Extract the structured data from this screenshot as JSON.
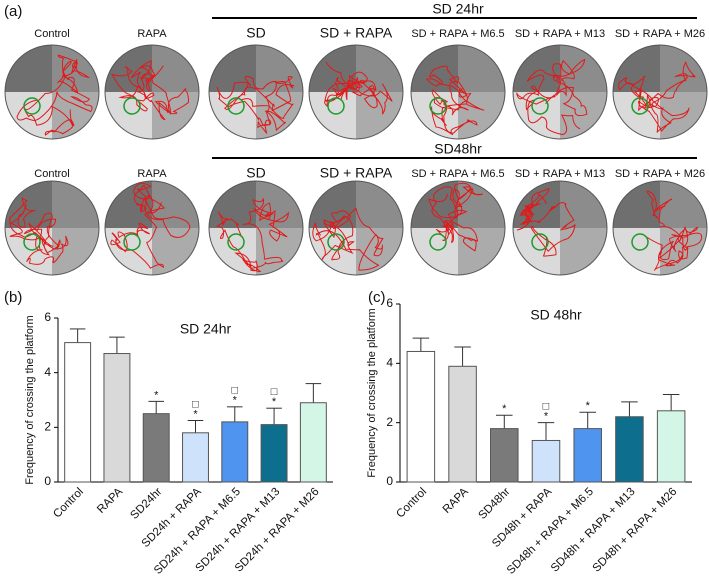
{
  "panel_a": {
    "label": "(a)",
    "rows": [
      {
        "group": "SD 24hr",
        "labels": [
          "Control",
          "RAPA",
          "SD",
          "SD + RAPA",
          "SD + RAPA + M6.5",
          "SD + RAPA + M13",
          "SD + RAPA + M26"
        ]
      },
      {
        "group": "SD48hr",
        "labels": [
          "Control",
          "RAPA",
          "SD",
          "SD + RAPA",
          "SD + RAPA + M6.5",
          "SD + RAPA + M13",
          "SD + RAPA + M26"
        ]
      }
    ]
  },
  "chart_data": [
    {
      "type": "bar",
      "panel": "(b)",
      "title": "SD 24hr",
      "ylabel": "Frequency of crossing the platform",
      "categories": [
        "Control",
        "RAPA",
        "SD24hr",
        "SD24h + RAPA",
        "SD24h + RAPA + M6.5",
        "SD24h + RAPA + M13",
        "SD24h + RAPA + M26"
      ],
      "values": [
        5.1,
        4.7,
        2.5,
        1.8,
        2.2,
        2.1,
        2.9
      ],
      "errors": [
        0.5,
        0.6,
        0.45,
        0.45,
        0.55,
        0.6,
        0.7
      ],
      "colors": [
        "#ffffff",
        "#d9d9d9",
        "#7a7a7a",
        "#cfe2fb",
        "#4f94ef",
        "#0e6e8e",
        "#d3f6e6"
      ],
      "markers": [
        null,
        null,
        [
          "*"
        ],
        [
          "□",
          "*"
        ],
        [
          "□",
          "*"
        ],
        [
          "□",
          "*"
        ],
        null
      ],
      "ylim": [
        0,
        6
      ],
      "yticks": [
        0,
        2,
        4,
        6
      ]
    },
    {
      "type": "bar",
      "panel": "(c)",
      "title": "SD 48hr",
      "ylabel": "Frequency of crossing the platform",
      "categories": [
        "Control",
        "RAPA",
        "SD48hr",
        "SD48h + RAPA",
        "SD48h + RAPA + M6.5",
        "SD48h + RAPA + M13",
        "SD48h + RAPA + M26"
      ],
      "values": [
        4.4,
        3.9,
        1.8,
        1.4,
        1.8,
        2.2,
        2.4
      ],
      "errors": [
        0.45,
        0.65,
        0.45,
        0.6,
        0.55,
        0.5,
        0.55
      ],
      "colors": [
        "#ffffff",
        "#d9d9d9",
        "#7a7a7a",
        "#cfe2fb",
        "#4f94ef",
        "#0e6e8e",
        "#d3f6e6"
      ],
      "markers": [
        null,
        null,
        [
          "*"
        ],
        [
          "□",
          "*"
        ],
        [
          "*"
        ],
        null,
        null
      ],
      "ylim": [
        0,
        6
      ],
      "yticks": [
        0,
        2,
        4,
        6
      ]
    }
  ]
}
